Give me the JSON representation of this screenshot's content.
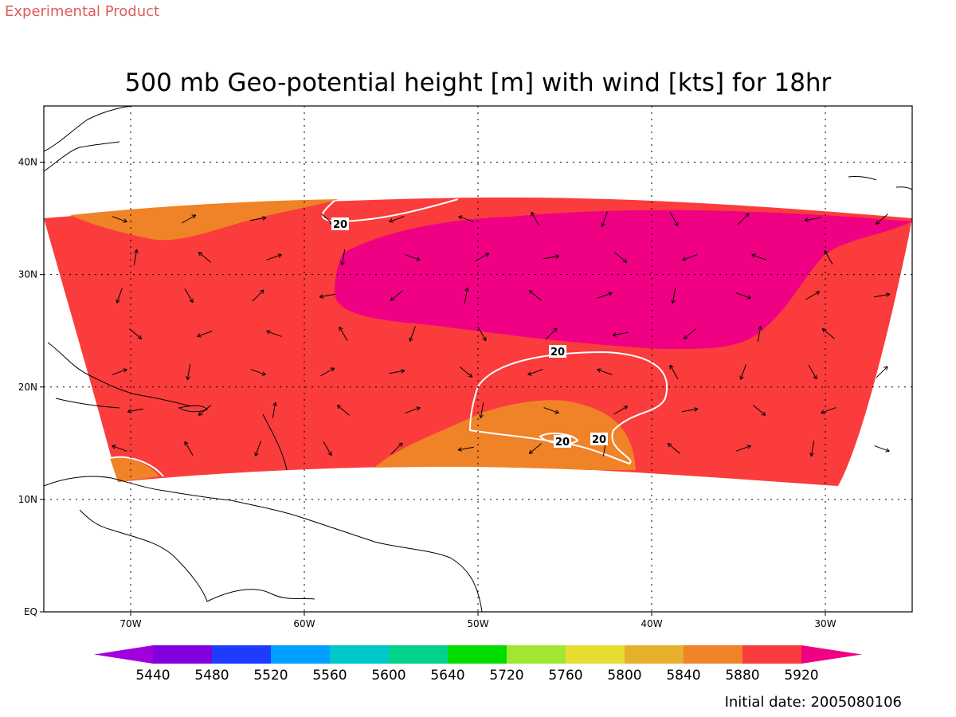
{
  "header": {
    "product": "Experimental Product",
    "title": "500 mb Geo-potential height [m] with wind [kts] for 18hr"
  },
  "map": {
    "lon_range": [
      -75,
      -25
    ],
    "lat_range": [
      0,
      45
    ],
    "x_ticks": [
      {
        "lon": -70,
        "label": "70W"
      },
      {
        "lon": -60,
        "label": "60W"
      },
      {
        "lon": -50,
        "label": "50W"
      },
      {
        "lon": -40,
        "label": "40W"
      },
      {
        "lon": -30,
        "label": "30W"
      }
    ],
    "y_ticks": [
      {
        "lat": 0,
        "label": "EQ"
      },
      {
        "lat": 10,
        "label": "10N"
      },
      {
        "lat": 20,
        "label": "20N"
      },
      {
        "lat": 30,
        "label": "30N"
      },
      {
        "lat": 40,
        "label": "40N"
      }
    ],
    "grid": "dotted",
    "contour_labels": [
      "20",
      "20",
      "20",
      "20"
    ]
  },
  "colorbar": {
    "labels": [
      "5440",
      "5480",
      "5520",
      "5560",
      "5600",
      "5640",
      "5720",
      "5760",
      "5800",
      "5840",
      "5880",
      "5920"
    ],
    "colors": [
      "#a000dc",
      "#8200dc",
      "#1e3cff",
      "#00a0ff",
      "#00c8c8",
      "#00d28c",
      "#00dc00",
      "#a0e632",
      "#e6dc32",
      "#e6af2d",
      "#f08228",
      "#fa3c3c",
      "#f00082"
    ]
  },
  "footer": {
    "initial_date": "Initial date: 2005080106"
  }
}
